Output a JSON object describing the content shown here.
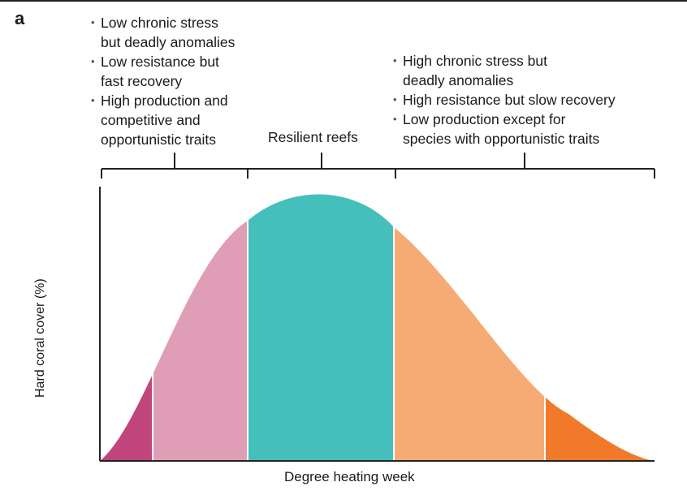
{
  "panel_label": "a",
  "left_group": {
    "bullets": [
      "Low chronic stress\nbut deadly anomalies",
      "Low resistance but\nfast recovery",
      "High production and\ncompetitive and\nopportunistic traits"
    ]
  },
  "middle_group": {
    "label": "Resilient reefs"
  },
  "right_group": {
    "bullets": [
      "High chronic stress but\ndeadly anomalies",
      "High resistance but slow recovery",
      "Low production except for\nspecies with opportunistic traits"
    ]
  },
  "axes": {
    "ylabel": "Hard coral cover (%)",
    "xlabel": "Degree heating week"
  },
  "colors": {
    "segment_1": "#c0457c",
    "segment_2": "#df9eb6",
    "segment_3": "#45bfbc",
    "segment_4": "#f6ab74",
    "segment_5": "#f07a2a",
    "axis": "#222222"
  }
}
